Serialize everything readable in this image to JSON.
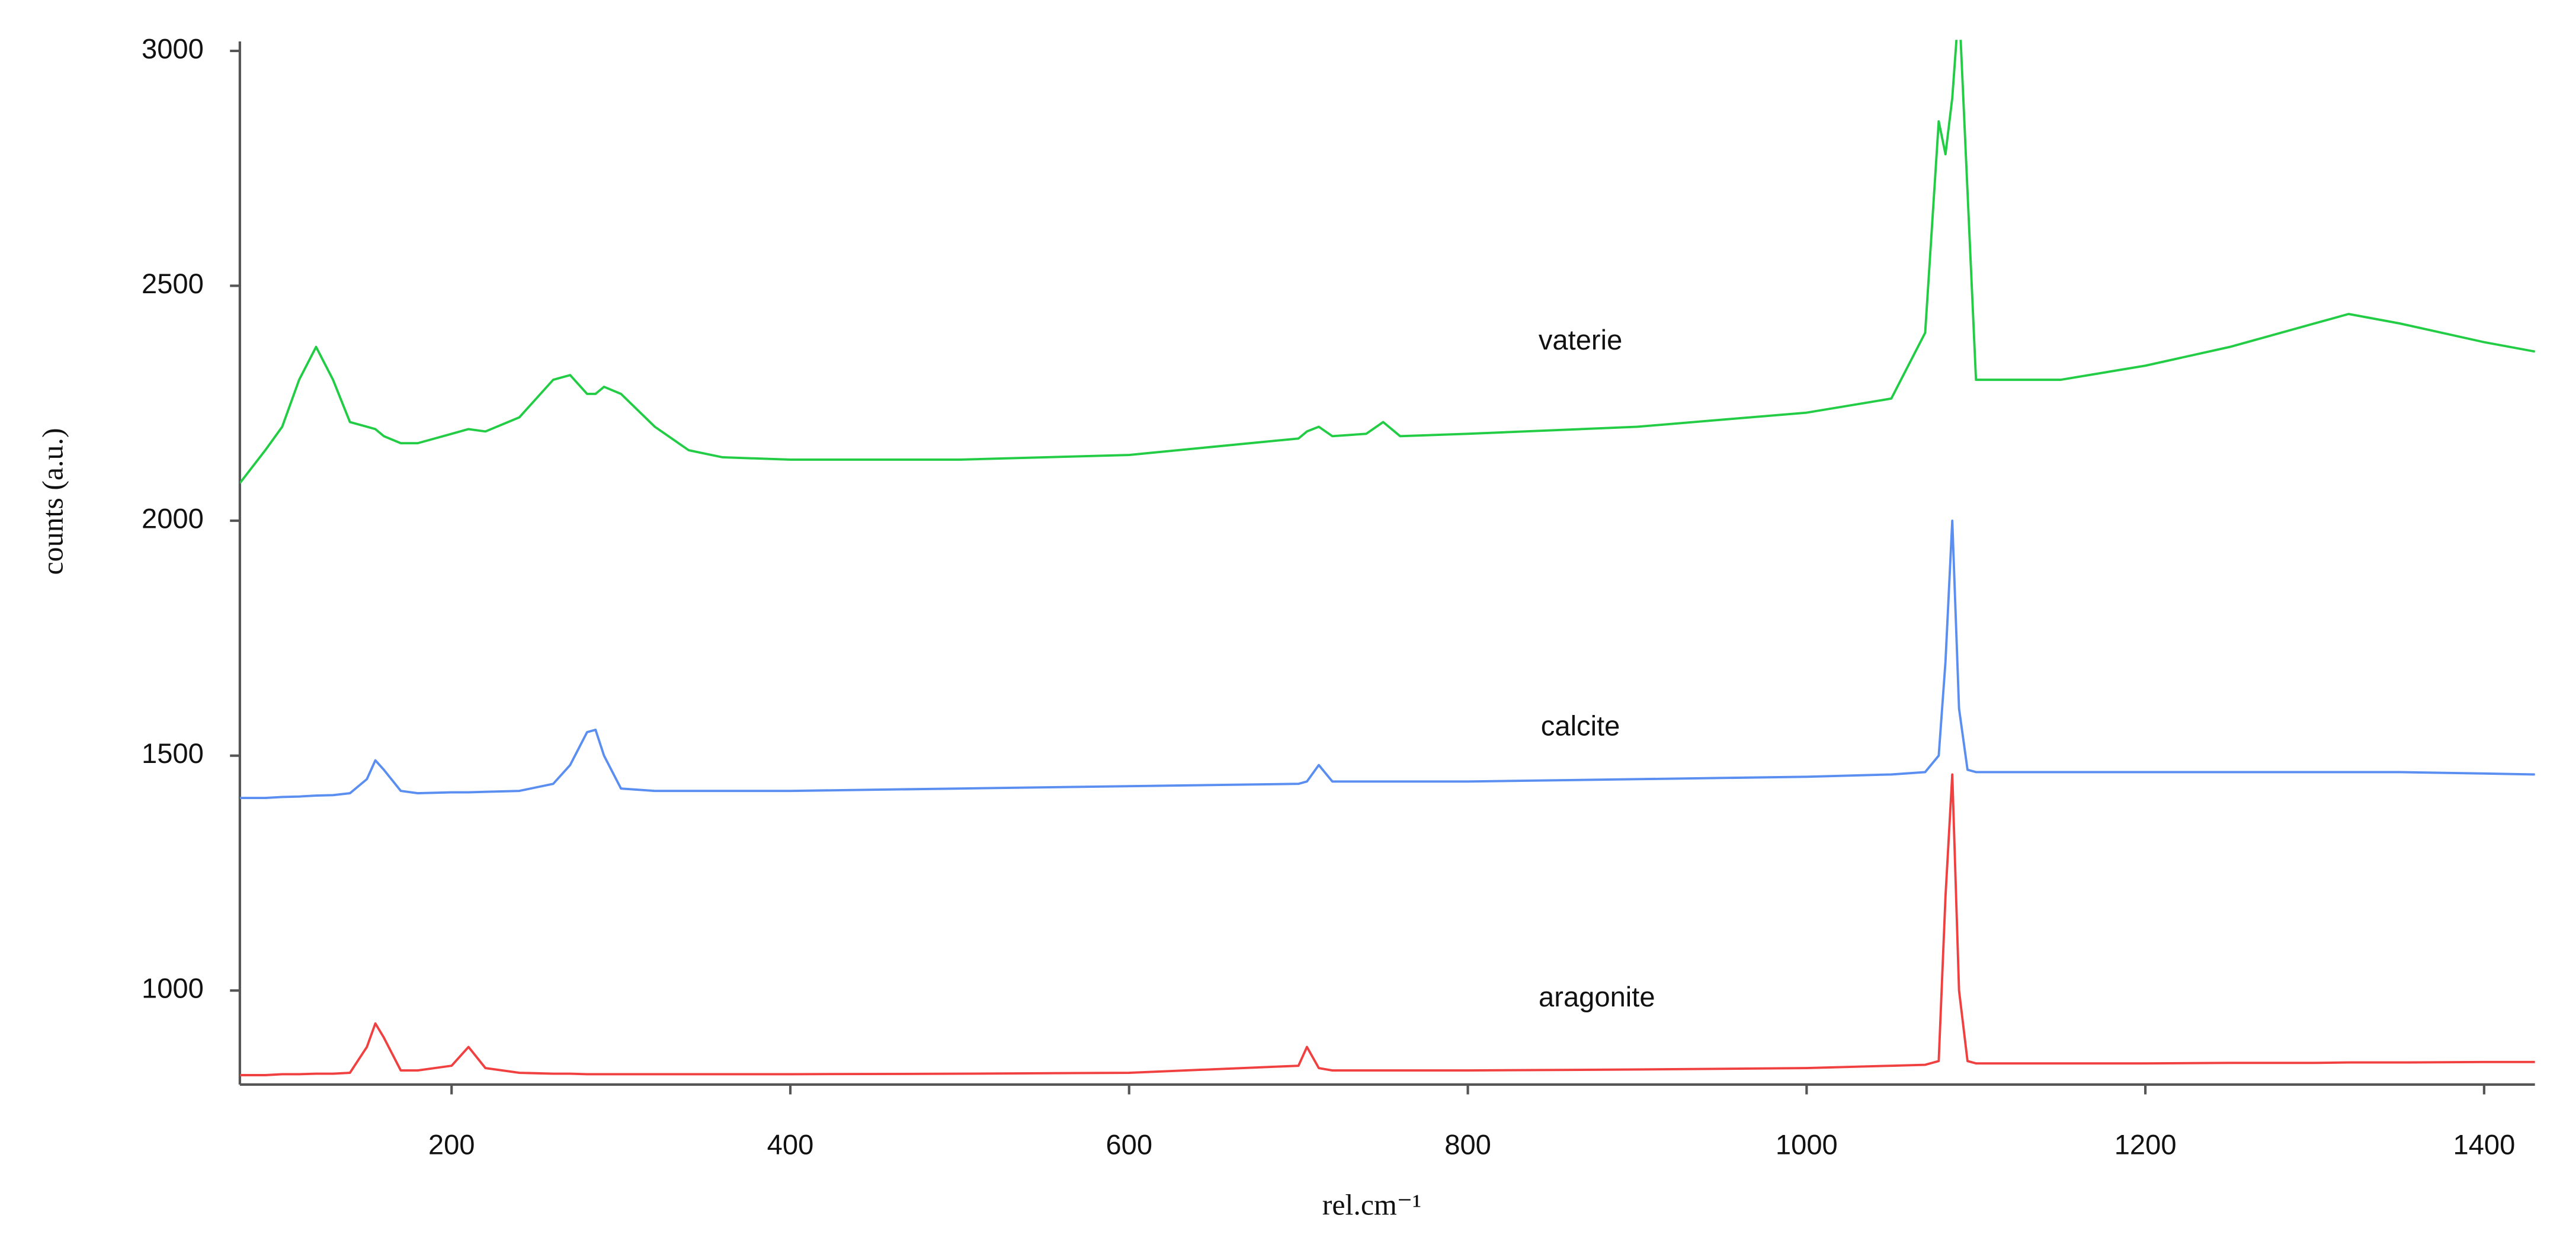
{
  "chart_data": {
    "type": "line",
    "xlabel": "rel.cm⁻¹",
    "ylabel": "counts (a.u.)",
    "x": [
      75,
      90,
      100,
      110,
      120,
      130,
      140,
      150,
      155,
      160,
      170,
      180,
      200,
      210,
      220,
      240,
      260,
      270,
      280,
      285,
      290,
      300,
      320,
      340,
      360,
      400,
      500,
      600,
      700,
      705,
      712,
      720,
      740,
      750,
      760,
      800,
      900,
      1000,
      1050,
      1070,
      1078,
      1082,
      1086,
      1090,
      1095,
      1100,
      1150,
      1200,
      1250,
      1300,
      1320,
      1350,
      1400,
      1430
    ],
    "series": [
      {
        "name": "vaterie",
        "color": "#22cc44",
        "values": [
          2080,
          2150,
          2200,
          2300,
          2370,
          2300,
          2210,
          2200,
          2195,
          2180,
          2165,
          2165,
          2185,
          2195,
          2190,
          2220,
          2300,
          2310,
          2270,
          2270,
          2285,
          2270,
          2200,
          2150,
          2135,
          2130,
          2130,
          2140,
          2175,
          2190,
          2200,
          2180,
          2185,
          2210,
          2180,
          2185,
          2200,
          2230,
          2260,
          2400,
          2850,
          2780,
          2900,
          3100,
          2700,
          2300,
          2300,
          2330,
          2370,
          2420,
          2440,
          2420,
          2380,
          2360
        ]
      },
      {
        "name": "calcite",
        "color": "#5a8ef0",
        "values": [
          1410,
          1410,
          1412,
          1413,
          1415,
          1416,
          1420,
          1450,
          1490,
          1470,
          1425,
          1420,
          1422,
          1422,
          1423,
          1425,
          1440,
          1480,
          1550,
          1555,
          1500,
          1430,
          1425,
          1425,
          1425,
          1425,
          1430,
          1435,
          1440,
          1445,
          1480,
          1445,
          1445,
          1445,
          1445,
          1445,
          1450,
          1455,
          1460,
          1465,
          1500,
          1700,
          2000,
          1600,
          1470,
          1465,
          1465,
          1465,
          1465,
          1465,
          1465,
          1465,
          1462,
          1460
        ]
      },
      {
        "name": "aragonite",
        "color": "#f04040",
        "values": [
          820,
          820,
          822,
          822,
          823,
          823,
          825,
          880,
          930,
          900,
          830,
          830,
          840,
          880,
          835,
          825,
          823,
          823,
          822,
          822,
          822,
          822,
          822,
          822,
          822,
          822,
          823,
          825,
          840,
          880,
          835,
          830,
          830,
          830,
          830,
          830,
          832,
          835,
          840,
          842,
          850,
          1200,
          1460,
          1000,
          850,
          845,
          845,
          845,
          846,
          846,
          847,
          847,
          848,
          848
        ]
      }
    ],
    "xlim": [
      75,
      1430
    ],
    "xticks": [
      200,
      400,
      600,
      800,
      1000,
      1200,
      1400
    ],
    "ylim": [
      800,
      3020
    ],
    "yticks": [
      1000,
      1500,
      2000,
      2500,
      3000
    ],
    "grid": false
  }
}
